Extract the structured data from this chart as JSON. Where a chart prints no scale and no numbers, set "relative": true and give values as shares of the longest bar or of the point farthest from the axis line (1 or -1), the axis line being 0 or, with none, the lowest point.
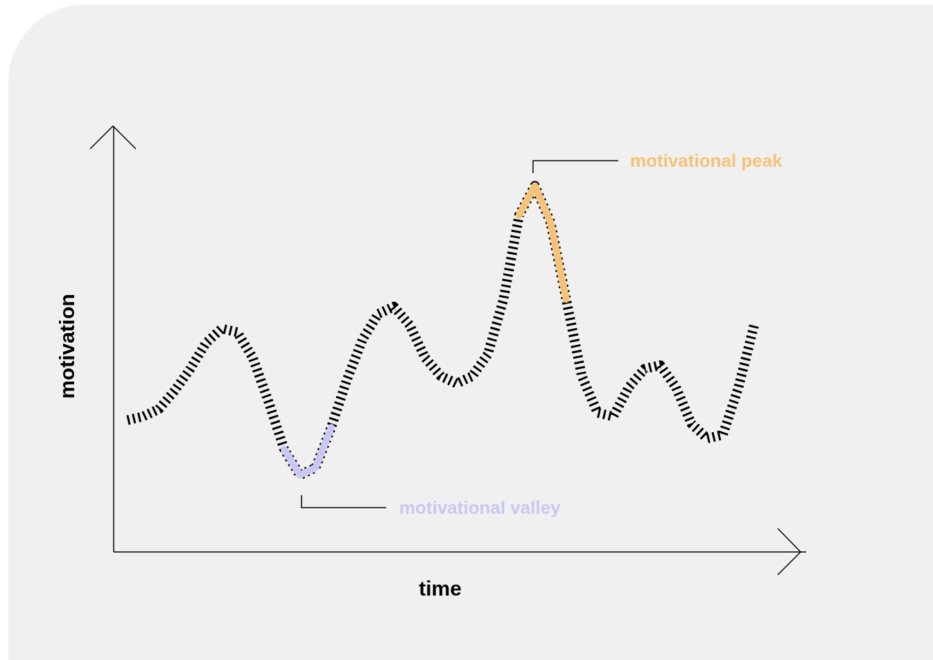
{
  "chart_data": {
    "type": "line",
    "relative": true,
    "xlabel": "time",
    "ylabel": "motivation",
    "grid": false,
    "legend": false,
    "marker": "none",
    "categories": [
      null,
      null,
      null,
      null,
      null,
      null,
      null,
      null,
      null,
      null,
      null,
      null,
      null,
      null,
      null,
      null,
      null,
      null,
      null,
      null,
      null,
      null,
      null,
      null,
      null,
      null,
      null,
      null,
      null,
      null,
      null,
      null,
      null,
      null,
      null,
      null,
      null,
      null,
      null,
      null,
      null
    ],
    "series": [
      {
        "color": "#000000",
        "line_style": "dashed",
        "values": [
          0.36,
          0.37,
          0.39,
          0.44,
          0.5,
          0.57,
          0.61,
          0.6,
          0.53,
          0.41,
          0.28,
          0.21,
          0.23,
          0.34,
          0.47,
          0.58,
          0.65,
          0.67,
          0.62,
          0.53,
          0.48,
          0.46,
          0.48,
          0.54,
          0.69,
          0.92,
          1,
          0.9,
          0.69,
          0.48,
          0.38,
          0.37,
          0.45,
          0.5,
          0.51,
          0.45,
          0.35,
          0.31,
          0.32,
          0.45,
          0.62
        ]
      },
      {
        "color": "#c8c8f2",
        "line_style": "solid",
        "values": [
          null,
          null,
          null,
          null,
          null,
          null,
          null,
          null,
          null,
          null,
          0.28,
          0.21,
          0.23,
          0.34,
          null,
          null,
          null,
          null,
          null,
          null,
          null,
          null,
          null,
          null,
          null,
          null,
          null,
          null,
          null,
          null,
          null,
          null,
          null,
          null,
          null,
          null,
          null,
          null,
          null,
          null,
          null
        ]
      },
      {
        "color": "#f5c27a",
        "line_style": "solid",
        "values": [
          null,
          null,
          null,
          null,
          null,
          null,
          null,
          null,
          null,
          null,
          null,
          null,
          null,
          null,
          null,
          null,
          null,
          null,
          null,
          null,
          null,
          null,
          null,
          null,
          null,
          0.92,
          1,
          0.9,
          0.69,
          null,
          null,
          null,
          null,
          null,
          null,
          null,
          null,
          null,
          null,
          null,
          null
        ]
      }
    ],
    "annotations": [
      "motivational valley",
      "motivational peak"
    ]
  }
}
